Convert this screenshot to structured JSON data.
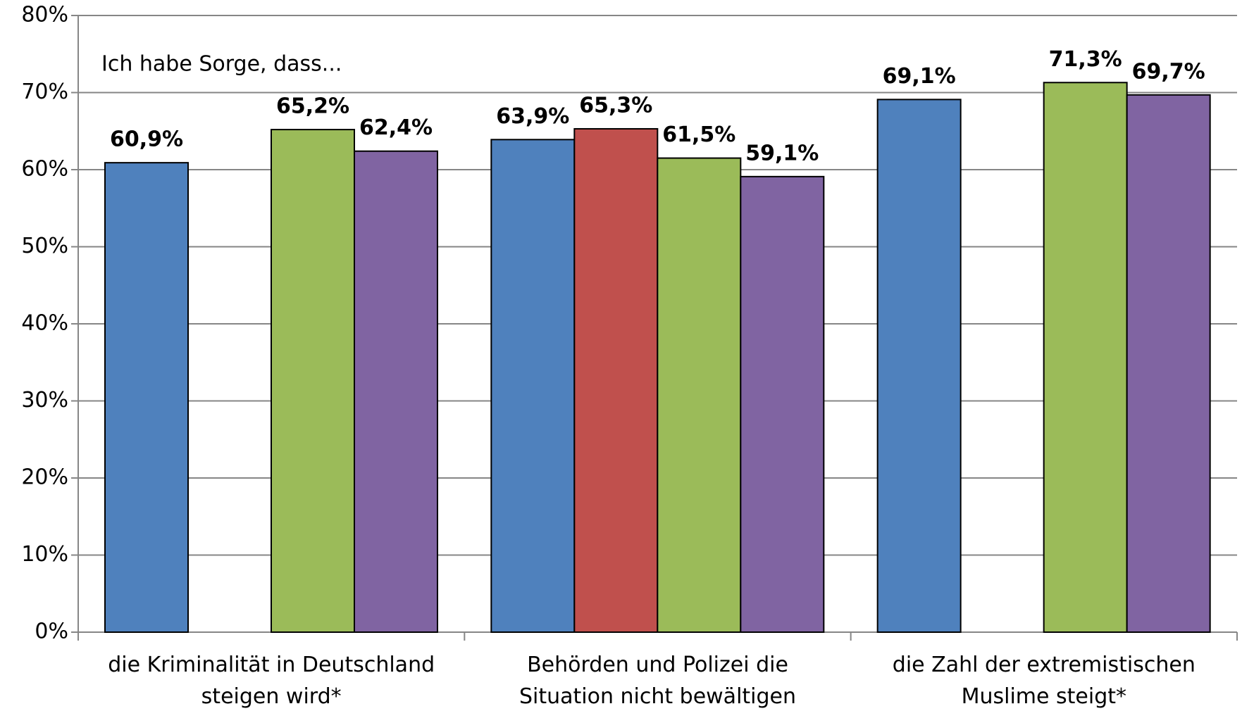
{
  "chart_data": {
    "type": "bar",
    "annotation": "Ich habe Sorge, dass...",
    "categories": [
      "die Kriminalität in Deutschland steigen wird*",
      "Behörden und Polizei die Situation nicht bewältigen",
      "die Zahl der extremistischen Muslime steigt*"
    ],
    "series": [
      {
        "color": "#4f81bd",
        "values": [
          60.9,
          63.9,
          69.1
        ],
        "value_labels": [
          "60,9%",
          "63,9%",
          "69,1%"
        ]
      },
      {
        "color": "#c0504d",
        "values": [
          null,
          65.3,
          null
        ],
        "value_labels": [
          null,
          "65,3%",
          null
        ]
      },
      {
        "color": "#9bbb59",
        "values": [
          65.2,
          61.5,
          71.3
        ],
        "value_labels": [
          "65,2%",
          "61,5%",
          "71,3%"
        ]
      },
      {
        "color": "#8064a2",
        "values": [
          62.4,
          59.1,
          69.7
        ],
        "value_labels": [
          "62,4%",
          "59,1%",
          "69,7%"
        ]
      }
    ],
    "ylim": [
      0,
      80
    ],
    "yticks": [
      {
        "value": 0,
        "label": "0%"
      },
      {
        "value": 10,
        "label": "10%"
      },
      {
        "value": 20,
        "label": "20%"
      },
      {
        "value": 30,
        "label": "30%"
      },
      {
        "value": 40,
        "label": "40%"
      },
      {
        "value": 50,
        "label": "50%"
      },
      {
        "value": 60,
        "label": "60%"
      },
      {
        "value": 70,
        "label": "70%"
      },
      {
        "value": 80,
        "label": "80%"
      }
    ],
    "grid": true
  }
}
